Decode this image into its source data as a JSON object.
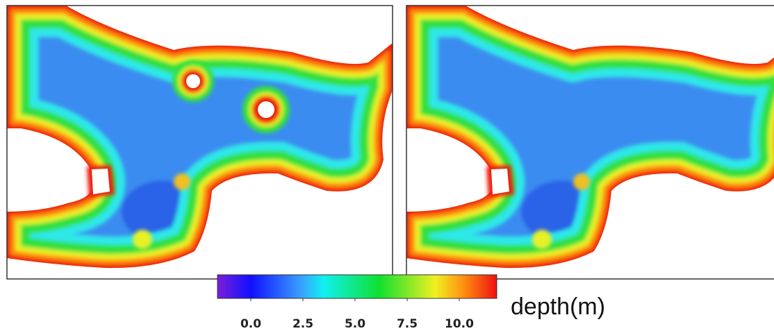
{
  "colorbar": {
    "label": "depth(m)",
    "lim": [
      -1.6,
      11.8
    ],
    "ticks": [
      {
        "value": 0,
        "label": "0.0"
      },
      {
        "value": 2.5,
        "label": "2.5"
      },
      {
        "value": 5,
        "label": "5.0"
      },
      {
        "value": 7.5,
        "label": "7.5"
      },
      {
        "value": 10,
        "label": "10.0"
      }
    ]
  }
}
